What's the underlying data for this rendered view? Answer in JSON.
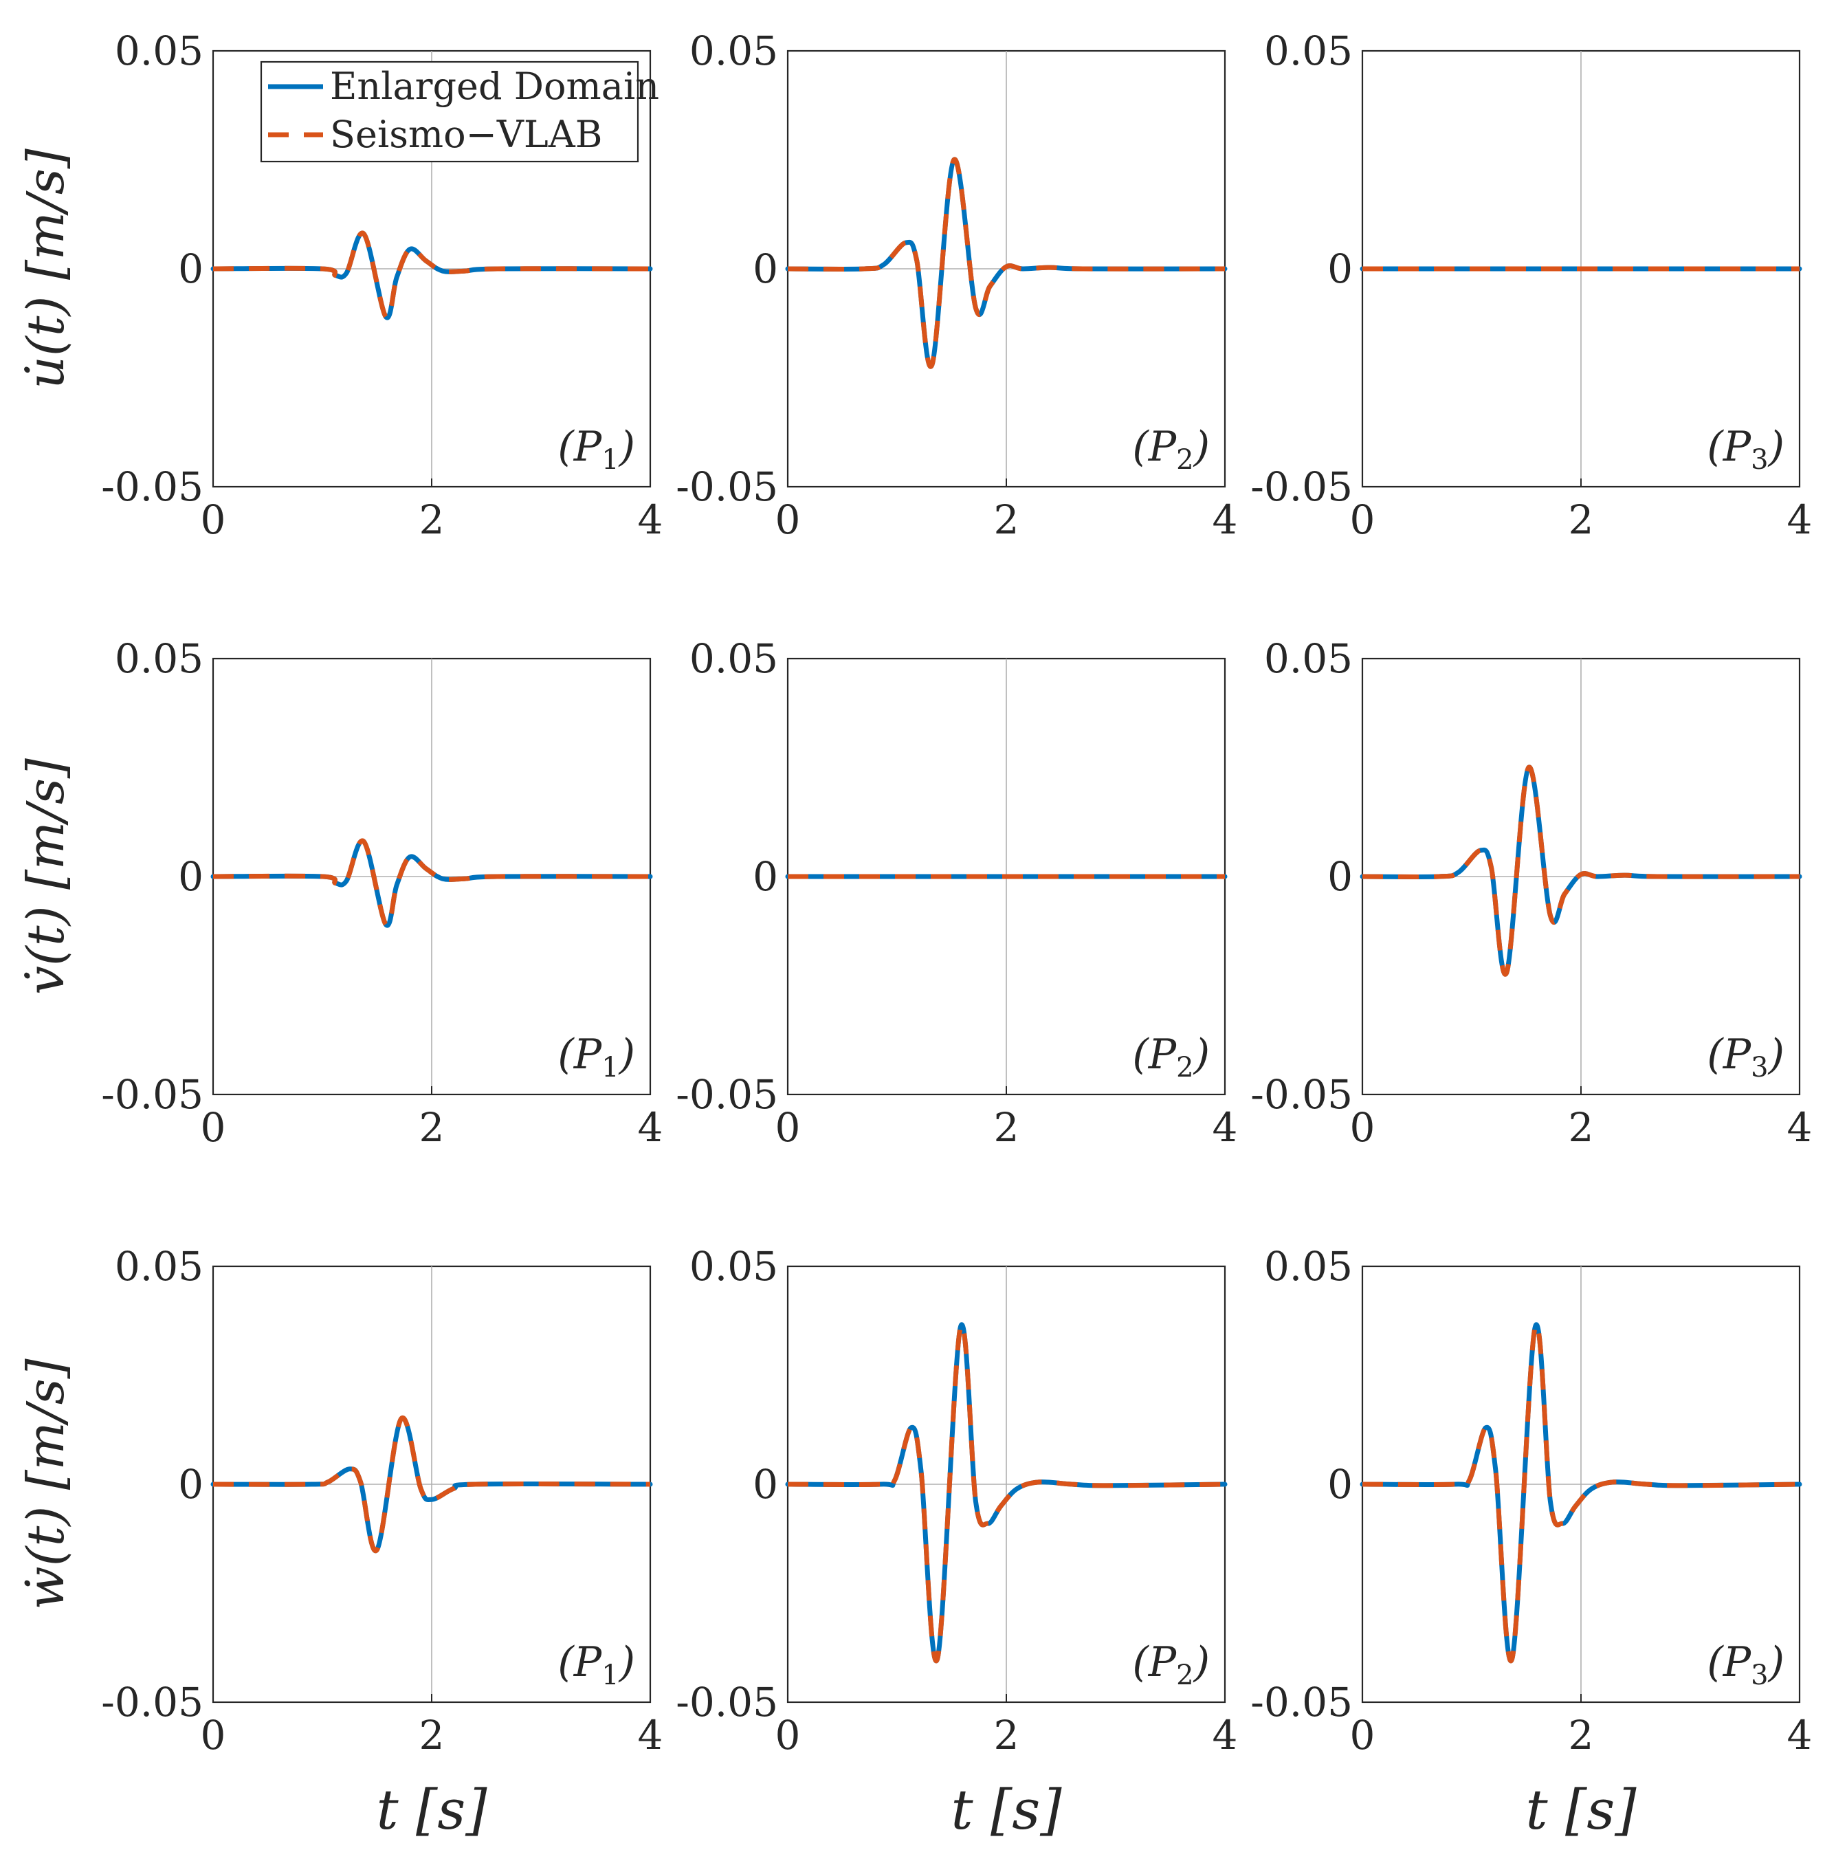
{
  "chart_data": {
    "type": "line",
    "layout": "3x3 grid",
    "x_tick_labels": [
      "0",
      "2",
      "4"
    ],
    "y_tick_labels": [
      "-0.05",
      "0",
      "0.05"
    ],
    "xlim": [
      0,
      4
    ],
    "ylim": [
      -0.05,
      0.05
    ],
    "xticks": [
      0,
      2,
      4
    ],
    "yticks": [
      -0.05,
      0,
      0.05
    ],
    "grid": "x at 2, y at 0",
    "xlabel": "t [s]",
    "legend": {
      "placement": "top-left of first panel",
      "entries": [
        {
          "name": "Enlarged Domain",
          "color": "#0072bd",
          "style": "solid"
        },
        {
          "name": "Seismo−VLAB",
          "color": "#d95319",
          "style": "dashed"
        }
      ]
    },
    "rows": [
      {
        "ylabel": "u̇(t) [m/s]",
        "ylabel_var": "u̇"
      },
      {
        "ylabel": "v̇(t) [m/s]",
        "ylabel_var": "v̇"
      },
      {
        "ylabel": "ẇ(t) [m/s]",
        "ylabel_var": "ẇ"
      }
    ],
    "panels": [
      {
        "row": 0,
        "col": 0,
        "label": "P",
        "sub": "1",
        "x": [
          0,
          1.0,
          1.12,
          1.22,
          1.38,
          1.58,
          1.68,
          1.8,
          1.95,
          2.1,
          2.3,
          2.6,
          4
        ],
        "y": [
          0,
          0,
          -0.0015,
          -0.001,
          0.008,
          -0.011,
          -0.002,
          0.0045,
          0.0018,
          -0.0005,
          -0.0005,
          0,
          0
        ]
      },
      {
        "row": 0,
        "col": 1,
        "label": "P",
        "sub": "2",
        "x": [
          0,
          0.7,
          0.88,
          1.08,
          1.18,
          1.32,
          1.52,
          1.72,
          1.85,
          2.0,
          2.15,
          2.4,
          2.7,
          4
        ],
        "y": [
          0,
          0,
          0.001,
          0.006,
          0.002,
          -0.022,
          0.025,
          -0.009,
          -0.004,
          0.0005,
          0,
          0.0003,
          0,
          0
        ]
      },
      {
        "row": 0,
        "col": 2,
        "label": "P",
        "sub": "3",
        "x": [
          0,
          4
        ],
        "y": [
          0,
          0
        ]
      },
      {
        "row": 1,
        "col": 0,
        "label": "P",
        "sub": "1",
        "x": [
          0,
          1.0,
          1.12,
          1.22,
          1.38,
          1.58,
          1.68,
          1.8,
          1.95,
          2.1,
          2.3,
          2.6,
          4
        ],
        "y": [
          0,
          0,
          -0.0015,
          -0.001,
          0.008,
          -0.011,
          -0.002,
          0.0045,
          0.0018,
          -0.0005,
          -0.0005,
          0,
          0
        ]
      },
      {
        "row": 1,
        "col": 1,
        "label": "P",
        "sub": "2",
        "x": [
          0,
          4
        ],
        "y": [
          0,
          0
        ]
      },
      {
        "row": 1,
        "col": 2,
        "label": "P",
        "sub": "3",
        "x": [
          0,
          0.7,
          0.88,
          1.08,
          1.18,
          1.32,
          1.52,
          1.72,
          1.85,
          2.0,
          2.15,
          2.4,
          2.7,
          4
        ],
        "y": [
          0,
          0,
          0.001,
          0.006,
          0.002,
          -0.022,
          0.025,
          -0.009,
          -0.004,
          0.0005,
          0,
          0.0003,
          0,
          0
        ]
      },
      {
        "row": 2,
        "col": 0,
        "label": "P",
        "sub": "1",
        "x": [
          0,
          0.9,
          1.05,
          1.25,
          1.35,
          1.5,
          1.72,
          1.9,
          2.0,
          2.2,
          2.4,
          4
        ],
        "y": [
          0,
          0,
          0.0005,
          0.0035,
          0.0005,
          -0.015,
          0.015,
          -0.001,
          -0.0035,
          -0.001,
          0,
          0
        ]
      },
      {
        "row": 2,
        "col": 1,
        "label": "P",
        "sub": "2",
        "x": [
          0,
          0.85,
          0.98,
          1.13,
          1.22,
          1.37,
          1.58,
          1.72,
          1.83,
          1.95,
          2.1,
          2.3,
          2.6,
          2.9,
          4
        ],
        "y": [
          0,
          0,
          0.001,
          0.013,
          0.003,
          -0.04,
          0.036,
          -0.004,
          -0.009,
          -0.005,
          -0.001,
          0.0005,
          0,
          -0.0003,
          0
        ]
      },
      {
        "row": 2,
        "col": 2,
        "label": "P",
        "sub": "3",
        "x": [
          0,
          0.85,
          0.98,
          1.13,
          1.22,
          1.37,
          1.58,
          1.72,
          1.83,
          1.95,
          2.1,
          2.3,
          2.6,
          2.9,
          4
        ],
        "y": [
          0,
          0,
          0.001,
          0.013,
          0.003,
          -0.04,
          0.036,
          -0.004,
          -0.009,
          -0.005,
          -0.001,
          0.0005,
          0,
          -0.0003,
          0
        ]
      }
    ]
  }
}
